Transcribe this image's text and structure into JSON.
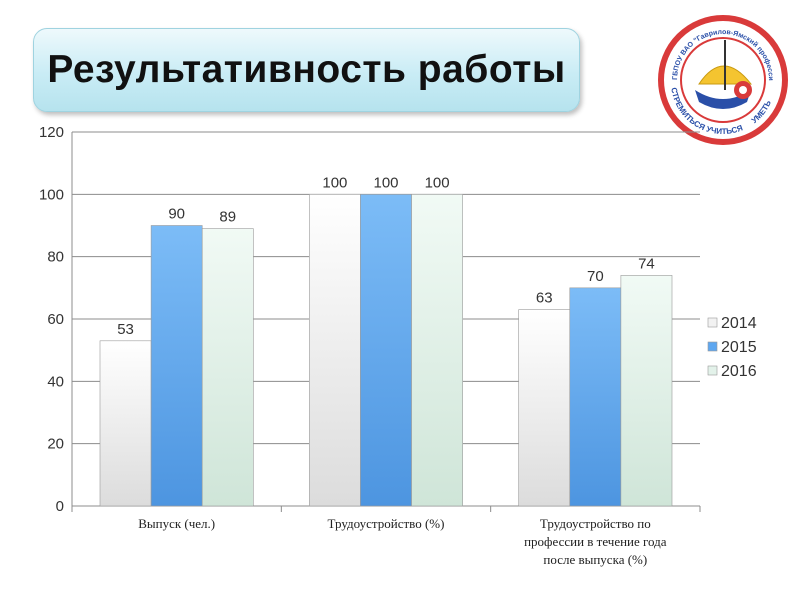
{
  "title": "Результативность работы",
  "logo": {
    "arc_text": "ГБПОУ ВАО \"Гаврилов-Ямский профессиональный колледж\"",
    "motto": [
      "СТРЕМИТЬСЯ",
      "УЧИТЬСЯ",
      "УМЕТЬ"
    ]
  },
  "chart_data": {
    "type": "bar",
    "title": "",
    "xlabel": "",
    "ylabel": "",
    "ylim": [
      0,
      120
    ],
    "yticks": [
      0,
      20,
      40,
      60,
      80,
      100,
      120
    ],
    "grid": true,
    "legend": "right",
    "categories": [
      [
        "Выпуск (чел.)"
      ],
      [
        "Трудоустройство (%)"
      ],
      [
        "Трудоустройство по",
        "профессии в течение года",
        "после выпуска (%)"
      ]
    ],
    "series": [
      {
        "name": "2014",
        "values": [
          53,
          100,
          63
        ],
        "color": "#f2f2f2"
      },
      {
        "name": "2015",
        "values": [
          90,
          100,
          70
        ],
        "color": "#5ea7f0"
      },
      {
        "name": "2016",
        "values": [
          89,
          100,
          74
        ],
        "color": "#e3f2ea"
      }
    ]
  }
}
